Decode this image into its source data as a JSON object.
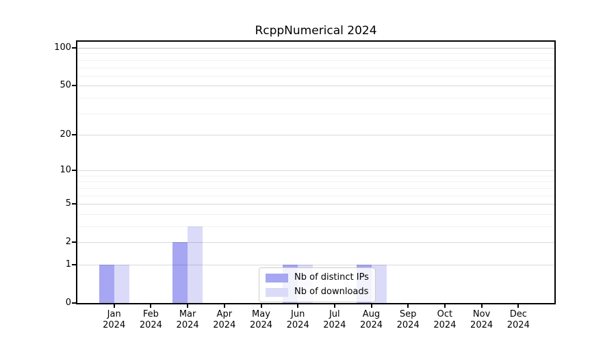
{
  "title": "RcppNumerical 2024",
  "colors": {
    "distinct_ips": "#a6a6f2",
    "downloads": "#dbdbf9",
    "axis": "#000000",
    "legend_border": "#cccccc"
  },
  "legend": {
    "items": [
      {
        "label": "Nb of distinct IPs",
        "color": "#a6a6f2"
      },
      {
        "label": "Nb of downloads",
        "color": "#dbdbf9"
      }
    ]
  },
  "chart_data": {
    "type": "bar",
    "title": "RcppNumerical 2024",
    "categories": [
      "Jan 2024",
      "Feb 2024",
      "Mar 2024",
      "Apr 2024",
      "May 2024",
      "Jun 2024",
      "Jul 2024",
      "Aug 2024",
      "Sep 2024",
      "Oct 2024",
      "Nov 2024",
      "Dec 2024"
    ],
    "series": [
      {
        "name": "Nb of distinct IPs",
        "color": "#a6a6f2",
        "values": [
          1,
          0,
          2,
          0,
          0,
          1,
          0,
          1,
          0,
          0,
          0,
          0
        ]
      },
      {
        "name": "Nb of downloads",
        "color": "#dbdbf9",
        "values": [
          1,
          0,
          3,
          0,
          0,
          1,
          0,
          1,
          0,
          0,
          0,
          0
        ]
      }
    ],
    "xlabel": "",
    "ylabel": "",
    "y_scale": "log10(value+1)",
    "y_ticks": [
      0,
      1,
      2,
      5,
      10,
      20,
      50,
      100
    ],
    "y_minor_gridlines": [
      3,
      4,
      6,
      7,
      8,
      9,
      30,
      40,
      60,
      70,
      80,
      90
    ],
    "ylim": [
      0,
      112
    ],
    "grid": true,
    "legend_position": "inside-bottom-center"
  }
}
